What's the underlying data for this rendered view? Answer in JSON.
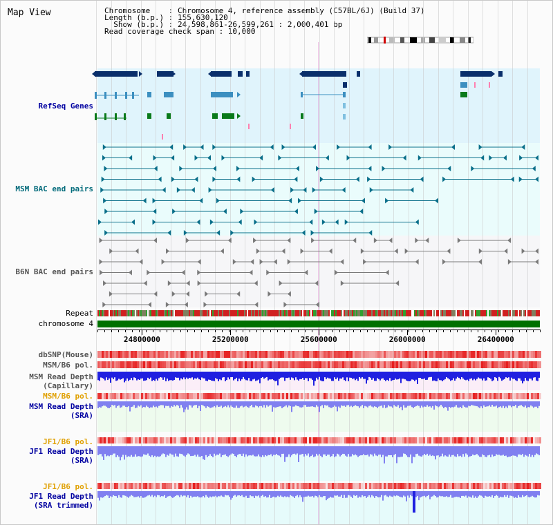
{
  "view_title": "Map View",
  "info": {
    "chromosome_line": "Chromosome    : Chromosome 4, reference assembly (C57BL/6J) (Build 37)",
    "length_line": "Length (b.p.) : 155,630,120",
    "show_line": "  Show (b.p.) : 24,598,861-26,599,261 : 2,000,401 bp",
    "read_line": "Read coverage check span : 10,000"
  },
  "labels": {
    "refseq": "RefSeq Genes",
    "msm_bac": "MSM BAC end pairs",
    "b6n_bac": "B6N BAC end pairs",
    "repeat": "Repeat",
    "chromosome": "chromosome 4",
    "dbsnp": "dbSNP(Mouse)",
    "msm_b6_pol": "MSM/B6 pol.",
    "msm_depth_cap": "MSM Read Depth\n(Capillary)",
    "msm_b6_pol_2": "MSM/B6 pol.",
    "msm_depth_sra": "MSM Read Depth\n(SRA)",
    "jf1_b6_pol": "JF1/B6 pol.",
    "jf1_depth_sra": "JF1 Read Depth\n(SRA)",
    "jf1_b6_pol_2": "JF1/B6 pol.",
    "jf1_depth_trim": "JF1 Read Depth\n(SRA trimmed)"
  },
  "axis_ticks": [
    "24800000",
    "25200000",
    "25600000",
    "26000000",
    "26400000"
  ],
  "axis_tick_values": [
    24800000,
    25200000,
    25600000,
    26000000,
    26400000
  ],
  "range": {
    "start": 24598861,
    "end": 26599261
  },
  "colors": {
    "refseq_bg": "#e0f4fc",
    "bac_bg": "#eafcfc",
    "b6n_bg": "#f4f4f8",
    "gene_dark": "#0a2f6b",
    "gene_mid": "#3c8fc0",
    "gene_green": "#0a7a1a",
    "bac_teal": "#0a6f8a",
    "b6n_gray": "#7a7a7a",
    "chrom_green": "#007000",
    "pol_red": "#e83030",
    "depth_blue": "#2020e0",
    "depth_light": "#8080f0",
    "label_blue": "#0000a0",
    "label_orange": "#e0a000",
    "label_teal": "#006a7a"
  }
}
